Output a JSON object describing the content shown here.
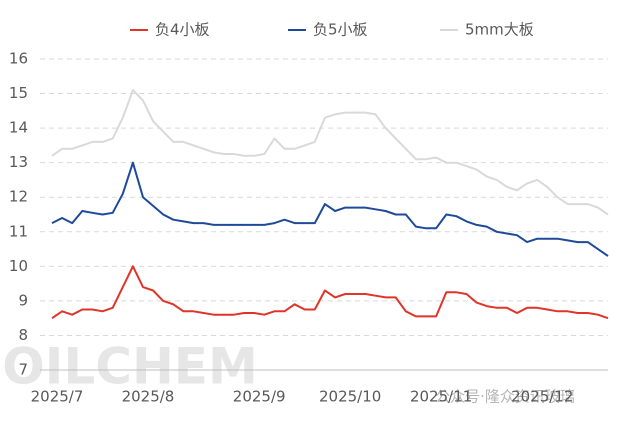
{
  "chart_data": {
    "type": "line",
    "categories": [
      "2025/7",
      null,
      null,
      null,
      null,
      null,
      null,
      null,
      null,
      "2025/8",
      null,
      null,
      null,
      null,
      null,
      null,
      null,
      null,
      null,
      null,
      "2025/9",
      null,
      null,
      null,
      null,
      null,
      null,
      null,
      null,
      "2025/10",
      null,
      null,
      null,
      null,
      null,
      null,
      null,
      null,
      "2025/11",
      null,
      null,
      null,
      null,
      null,
      null,
      null,
      null,
      null,
      "2025/12",
      null,
      null,
      null,
      null,
      null,
      null,
      null
    ],
    "series": [
      {
        "name": "负4小板",
        "color": "#e0342a",
        "values": [
          8.5,
          8.7,
          8.6,
          8.75,
          8.75,
          8.7,
          8.8,
          9.4,
          10.0,
          9.4,
          9.3,
          9.0,
          8.9,
          8.7,
          8.7,
          8.65,
          8.6,
          8.6,
          8.6,
          8.65,
          8.65,
          8.6,
          8.7,
          8.7,
          8.9,
          8.75,
          8.75,
          9.3,
          9.1,
          9.2,
          9.2,
          9.2,
          9.15,
          9.1,
          9.1,
          8.7,
          8.55,
          8.55,
          8.55,
          9.25,
          9.25,
          9.2,
          8.95,
          8.85,
          8.8,
          8.8,
          8.65,
          8.8,
          8.8,
          8.75,
          8.7,
          8.7,
          8.65,
          8.65,
          8.6,
          8.5
        ]
      },
      {
        "name": "负5小板",
        "color": "#1f4a9a",
        "values": [
          11.25,
          11.4,
          11.25,
          11.6,
          11.55,
          11.5,
          11.55,
          12.1,
          13.0,
          12.0,
          11.75,
          11.5,
          11.35,
          11.3,
          11.25,
          11.25,
          11.2,
          11.2,
          11.2,
          11.2,
          11.2,
          11.2,
          11.25,
          11.35,
          11.25,
          11.25,
          11.25,
          11.8,
          11.6,
          11.7,
          11.7,
          11.7,
          11.65,
          11.6,
          11.5,
          11.5,
          11.15,
          11.1,
          11.1,
          11.5,
          11.45,
          11.3,
          11.2,
          11.15,
          11.0,
          10.95,
          10.9,
          10.7,
          10.8,
          10.8,
          10.8,
          10.75,
          10.7,
          10.7,
          10.5,
          10.3
        ]
      },
      {
        "name": "5mm大板",
        "color": "#d9d9d9",
        "values": [
          13.2,
          13.4,
          13.4,
          13.5,
          13.6,
          13.6,
          13.7,
          14.3,
          15.1,
          14.8,
          14.2,
          13.9,
          13.6,
          13.6,
          13.5,
          13.4,
          13.3,
          13.25,
          13.25,
          13.2,
          13.2,
          13.25,
          13.7,
          13.4,
          13.4,
          13.5,
          13.6,
          14.3,
          14.4,
          14.45,
          14.45,
          14.45,
          14.4,
          14.0,
          13.7,
          13.4,
          13.1,
          13.1,
          13.15,
          13.0,
          13.0,
          12.9,
          12.8,
          12.6,
          12.5,
          12.3,
          12.2,
          12.4,
          12.5,
          12.3,
          12.0,
          11.8,
          11.8,
          11.8,
          11.7,
          11.5
        ]
      }
    ],
    "ylim": [
      7,
      16
    ],
    "yticks": [
      7,
      8,
      9,
      10,
      11,
      12,
      13,
      14,
      15,
      16
    ],
    "grid": true,
    "legend": "top",
    "annotations": [
      "OILCHEM",
      "公众号·隆众资讯玻璃"
    ]
  }
}
